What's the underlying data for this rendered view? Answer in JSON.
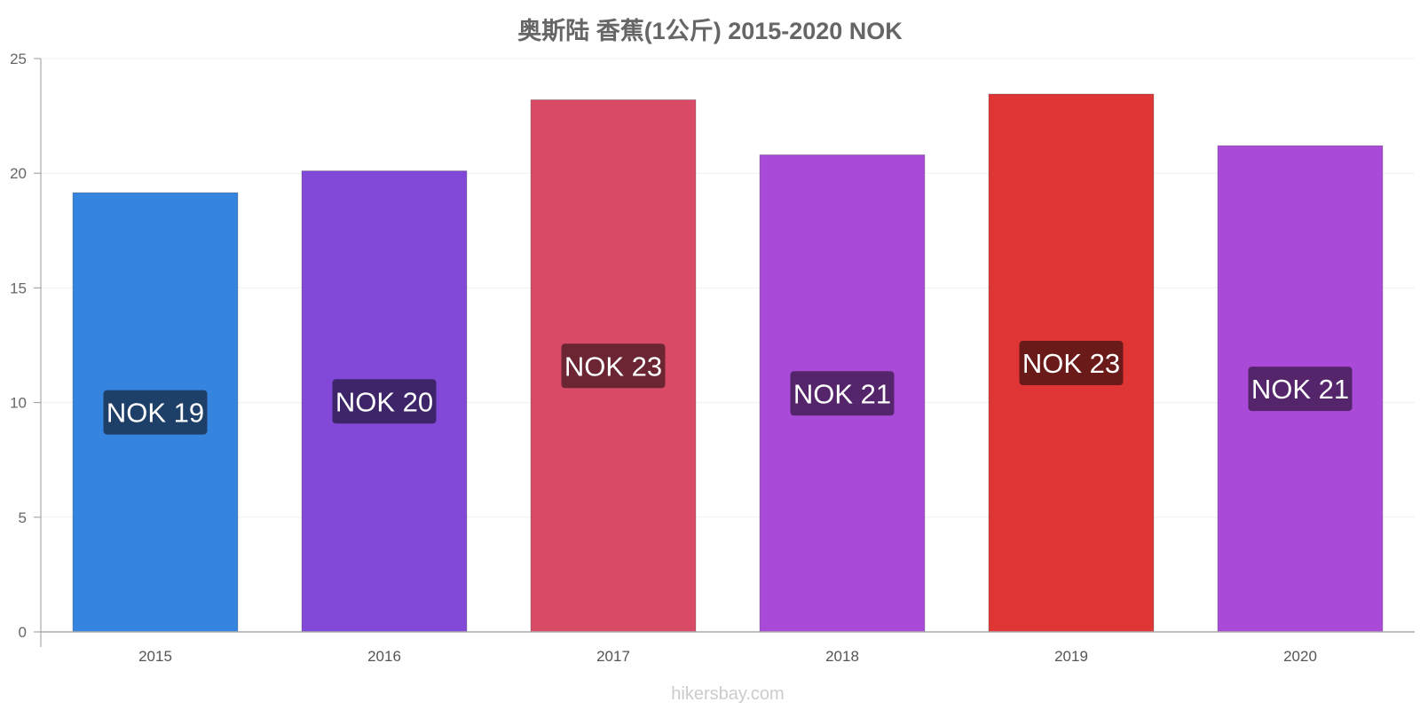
{
  "chart_data": {
    "type": "bar",
    "title": "奥斯陆 香蕉(1公斤) 2015-2020 NOK",
    "xlabel": "",
    "ylabel": "",
    "ylim": [
      0,
      25
    ],
    "yticks": [
      "0",
      "5",
      "10",
      "15",
      "20",
      "25"
    ],
    "categories": [
      "2015",
      "2016",
      "2017",
      "2018",
      "2019",
      "2020"
    ],
    "values": [
      19.15,
      20.1,
      23.2,
      20.8,
      23.45,
      21.2
    ],
    "data_labels": [
      "NOK 19",
      "NOK 20",
      "NOK 23",
      "NOK 21",
      "NOK 23",
      "NOK 21"
    ],
    "bar_colors": [
      "#3584e0",
      "#8249d8",
      "#d84a66",
      "#a94ad8",
      "#e03535",
      "#a94ad8"
    ],
    "label_bg_colors": [
      "#1e3f68",
      "#3e2468",
      "#6b2533",
      "#55256b",
      "#6b1a1a",
      "#55256b"
    ],
    "grid": true,
    "legend": "none"
  },
  "source": "hikersbay.com"
}
